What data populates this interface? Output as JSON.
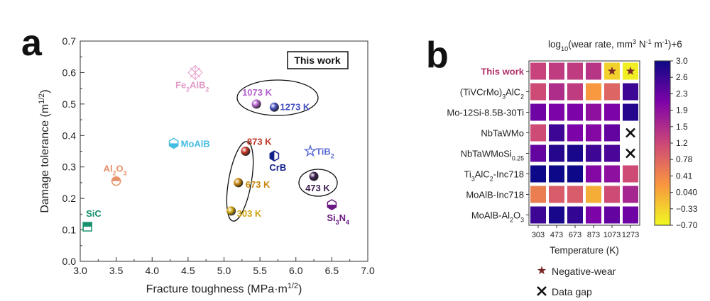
{
  "chart_data": [
    {
      "type": "scatter",
      "panel_label": "a",
      "xlabel": "Fracture toughness (MPa·m^{1/2})",
      "ylabel": "Damage tolerance (m^{1/2})",
      "xlim": [
        3.0,
        7.0
      ],
      "ylim": [
        0.0,
        0.7
      ],
      "xticks": [
        "3.0",
        "3.5",
        "4.0",
        "4.5",
        "5.0",
        "5.5",
        "6.0",
        "6.5",
        "7.0"
      ],
      "yticks": [
        "0.0",
        "0.1",
        "0.2",
        "0.3",
        "0.4",
        "0.5",
        "0.6",
        "0.7"
      ],
      "legend": "This work",
      "points": [
        {
          "label": "SiC",
          "x": 3.1,
          "y": 0.11,
          "color": "#16906e",
          "marker": "half-square"
        },
        {
          "label": "Al_2O_3",
          "x": 3.5,
          "y": 0.255,
          "color": "#e8906a",
          "marker": "half-circle"
        },
        {
          "label": "MoAlB",
          "x": 4.3,
          "y": 0.375,
          "color": "#45bde0",
          "marker": "half-hexagon"
        },
        {
          "label": "Fe_2AlB_2",
          "x": 4.6,
          "y": 0.6,
          "color": "#e39ac8",
          "marker": "hatched"
        },
        {
          "label": "1073 K",
          "x": 5.45,
          "y": 0.5,
          "color": "#b462cc",
          "marker": "sphere"
        },
        {
          "label": "1273 K",
          "x": 5.7,
          "y": 0.49,
          "color": "#4450c0",
          "marker": "sphere"
        },
        {
          "label": "873 K",
          "x": 5.3,
          "y": 0.35,
          "color": "#c03222",
          "marker": "sphere"
        },
        {
          "label": "673 K",
          "x": 5.2,
          "y": 0.25,
          "color": "#c8860e",
          "marker": "sphere"
        },
        {
          "label": "303 K",
          "x": 5.1,
          "y": 0.16,
          "color": "#cfa310",
          "marker": "sphere"
        },
        {
          "label": "CrB",
          "x": 5.7,
          "y": 0.335,
          "color": "#14208a",
          "marker": "half-hexagon"
        },
        {
          "label": "TiB_2",
          "x": 6.2,
          "y": 0.35,
          "color": "#5b6bd6",
          "marker": "star"
        },
        {
          "label": "473 K",
          "x": 6.25,
          "y": 0.27,
          "color": "#3e2050",
          "marker": "sphere"
        },
        {
          "label": "Si_3N_4",
          "x": 6.5,
          "y": 0.18,
          "color": "#6a1a82",
          "marker": "half-hexagon"
        }
      ]
    },
    {
      "type": "heatmap",
      "panel_label": "b",
      "title": "log_{10}(wear rate, mm^3 N^{-1} m^{-1})+6",
      "xlabel": "Temperature (K)",
      "x": [
        "303",
        "473",
        "673",
        "873",
        "1073",
        "1273"
      ],
      "y": [
        "This work",
        "(TiVCrMo)_3AlC_2",
        "Mo-12Si-8.5B-30Ti",
        "NbTaWMo",
        "NbTaWMoSi_{0.25}",
        "Ti_3AlC_2-Inc718",
        "MoAlB-Inc718",
        "MoAlB-Al_2O_3"
      ],
      "values": [
        [
          1.2,
          1.3,
          1.3,
          1.4,
          -0.33,
          -0.6
        ],
        [
          1.1,
          1.5,
          1.3,
          0.2,
          0.8,
          2.6
        ],
        [
          2.2,
          2.1,
          2.1,
          1.9,
          2.1,
          2.8
        ],
        [
          1.1,
          2.6,
          2.1,
          2.0,
          2.3,
          null
        ],
        [
          2.3,
          2.8,
          2.9,
          2.6,
          2.5,
          null
        ],
        [
          3.0,
          3.0,
          3.0,
          2.0,
          1.9,
          1.1
        ],
        [
          0.5,
          0.9,
          0.9,
          0.0,
          1.1,
          1.6
        ],
        [
          2.6,
          2.9,
          2.7,
          2.1,
          2.3,
          2.2
        ]
      ],
      "negative_wear": [
        [
          0,
          4
        ],
        [
          0,
          5
        ]
      ],
      "data_gap": [
        [
          3,
          5
        ],
        [
          4,
          5
        ]
      ],
      "colorbar_range": [
        -0.7,
        3.0
      ],
      "colorbar_ticks": [
        "3.0",
        "2.6",
        "2.3",
        "1.9",
        "1.5",
        "1.2",
        "0.78",
        "0.41",
        "0.040",
        "−0.33",
        "−0.70"
      ],
      "legend": [
        "Negative-wear",
        "Data gap"
      ],
      "highlight_color": "#b0306a",
      "star_color": "#7a2828"
    }
  ]
}
